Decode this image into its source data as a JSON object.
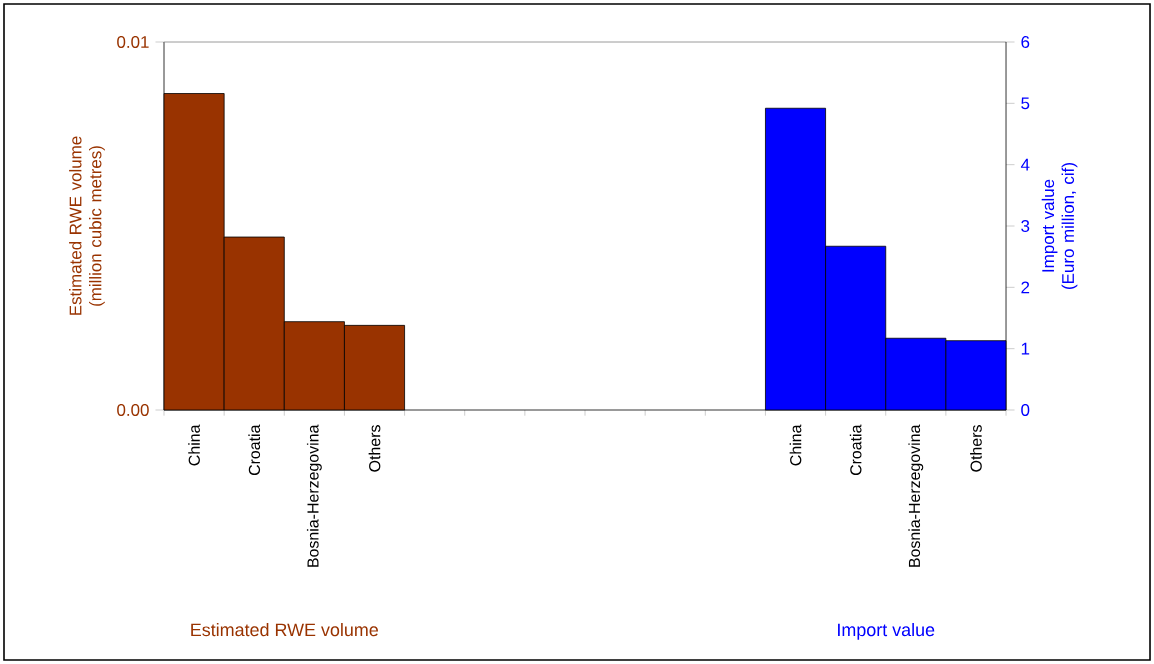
{
  "chart_data": {
    "type": "bar",
    "categories": [
      "China",
      "Croatia",
      "Bosnia-Herzegovina",
      "Others",
      null,
      null,
      null,
      null,
      null,
      null,
      "China",
      "Croatia",
      "Bosnia-Herzegovina",
      "Others"
    ],
    "series": [
      {
        "name": "Estimated RWE volume",
        "color": "#993300",
        "values": [
          0.0086,
          0.0047,
          0.0024,
          0.0023,
          null,
          null,
          null,
          null,
          null,
          null,
          null,
          null,
          null,
          null
        ]
      },
      {
        "name": "Import value",
        "color": "#0000ff",
        "axis": "y2",
        "values": [
          null,
          null,
          null,
          null,
          null,
          null,
          null,
          null,
          null,
          null,
          4.92,
          2.67,
          1.17,
          1.13
        ]
      }
    ],
    "ylabel": "Estimated RWE volume (million cubic metres)",
    "y2label": "Import value (Euro million, cif)",
    "ylim": [
      0,
      0.01
    ],
    "yticks": [
      {
        "value": 0,
        "label": "0.00"
      },
      {
        "value": 0.01,
        "label": "0.01"
      }
    ],
    "y2lim": [
      0,
      6
    ],
    "y2ticks": [
      0,
      1,
      2,
      3,
      4,
      5,
      6
    ],
    "grid": false
  }
}
